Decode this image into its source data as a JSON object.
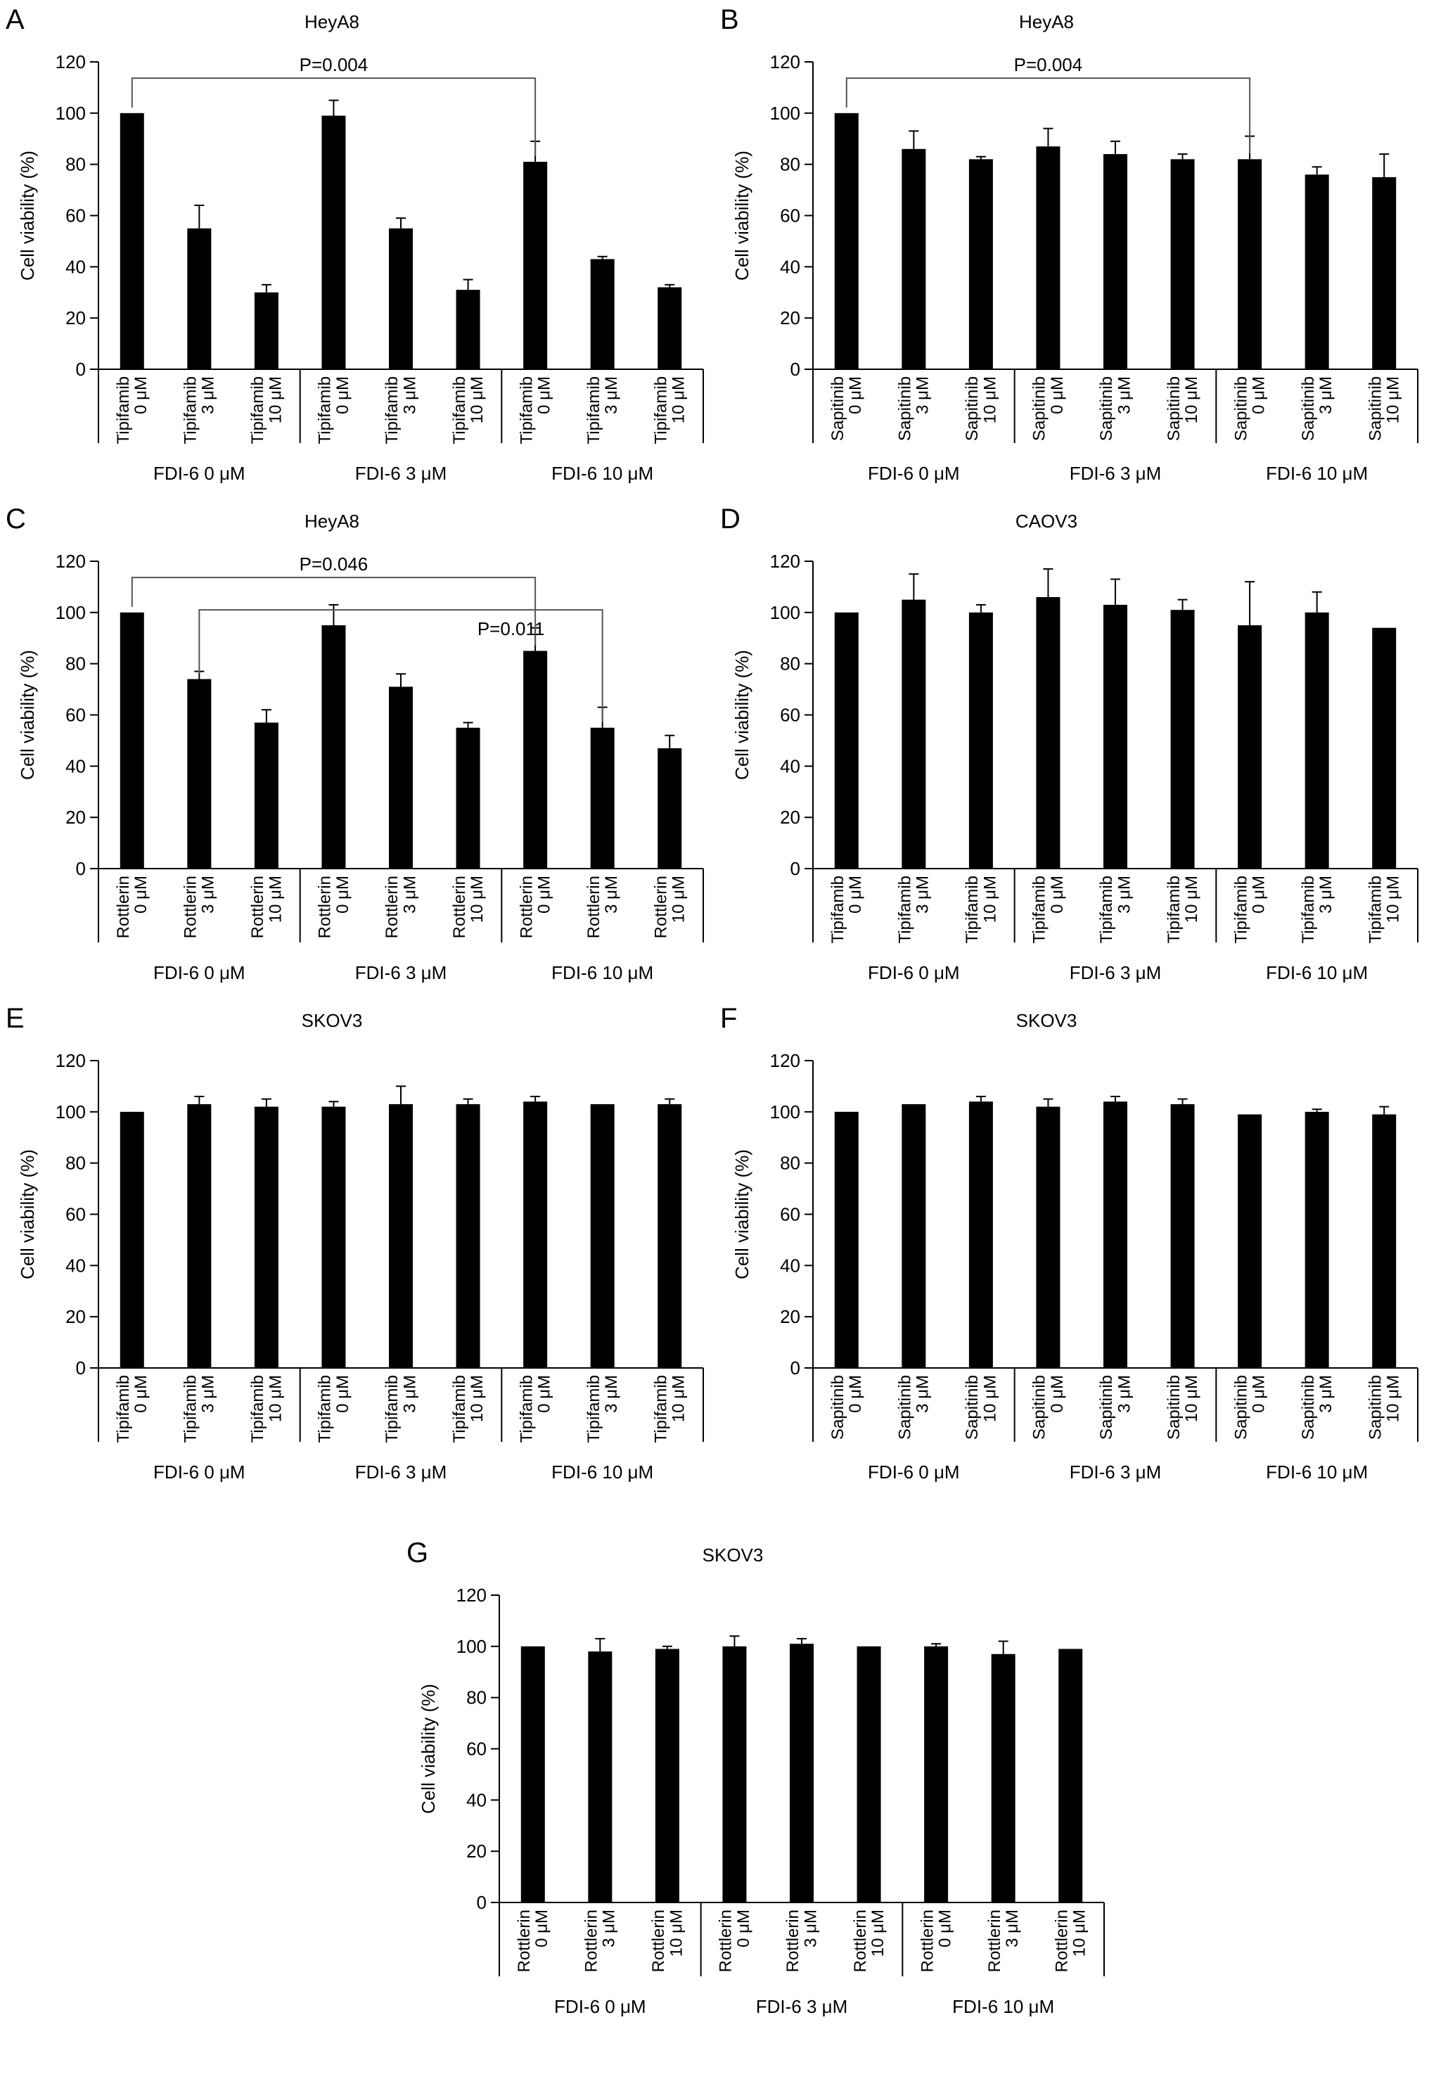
{
  "chart_data": [
    {
      "panel_label": "A",
      "type": "bar",
      "title": "HeyA8",
      "ylabel": "Cell viability (%)",
      "ylim": [
        0,
        120
      ],
      "yticks": [
        0,
        20,
        40,
        60,
        80,
        100,
        120
      ],
      "drug": "Tipifamib",
      "doses": [
        "0 μM",
        "3 μM",
        "10 μM"
      ],
      "groups": [
        "FDI-6 0 μM",
        "FDI-6 3 μM",
        "FDI-6 10 μM"
      ],
      "values": [
        100,
        55,
        30,
        99,
        55,
        31,
        81,
        43,
        32
      ],
      "errors": [
        0,
        9,
        3,
        6,
        4,
        4,
        8,
        1,
        1
      ],
      "comparisons": [
        {
          "from": 0,
          "to": 6,
          "label": "P=0.004"
        }
      ]
    },
    {
      "panel_label": "B",
      "type": "bar",
      "title": "HeyA8",
      "ylabel": "Cell viability (%)",
      "ylim": [
        0,
        120
      ],
      "yticks": [
        0,
        20,
        40,
        60,
        80,
        100,
        120
      ],
      "drug": "Sapitinib",
      "doses": [
        "0 μM",
        "3 μM",
        "10 μM"
      ],
      "groups": [
        "FDI-6 0 μM",
        "FDI-6 3 μM",
        "FDI-6 10 μM"
      ],
      "values": [
        100,
        86,
        82,
        87,
        84,
        82,
        82,
        76,
        75
      ],
      "errors": [
        0,
        7,
        1,
        7,
        5,
        2,
        9,
        3,
        9
      ],
      "comparisons": [
        {
          "from": 0,
          "to": 6,
          "label": "P=0.004"
        }
      ]
    },
    {
      "panel_label": "C",
      "type": "bar",
      "title": "HeyA8",
      "ylabel": "Cell viability (%)",
      "ylim": [
        0,
        120
      ],
      "yticks": [
        0,
        20,
        40,
        60,
        80,
        100,
        120
      ],
      "drug": "Rottlerin",
      "doses": [
        "0 μM",
        "3 μM",
        "10 μM"
      ],
      "groups": [
        "FDI-6 0 μM",
        "FDI-6 3 μM",
        "FDI-6 10 μM"
      ],
      "values": [
        100,
        74,
        57,
        95,
        71,
        55,
        85,
        55,
        47
      ],
      "errors": [
        0,
        3,
        5,
        8,
        5,
        2,
        9,
        8,
        5
      ],
      "comparisons": [
        {
          "from": 0,
          "to": 6,
          "label": "P=0.046"
        },
        {
          "from": 1,
          "to": 7,
          "label": "P=0.011"
        }
      ]
    },
    {
      "panel_label": "D",
      "type": "bar",
      "title": "CAOV3",
      "ylabel": "Cell viability (%)",
      "ylim": [
        0,
        120
      ],
      "yticks": [
        0,
        20,
        40,
        60,
        80,
        100,
        120
      ],
      "drug": "Tipifamib",
      "doses": [
        "0 μM",
        "3 μM",
        "10 μM"
      ],
      "groups": [
        "FDI-6 0 μM",
        "FDI-6 3 μM",
        "FDI-6 10 μM"
      ],
      "values": [
        100,
        105,
        100,
        106,
        103,
        101,
        95,
        100,
        94
      ],
      "errors": [
        0,
        10,
        3,
        11,
        10,
        4,
        17,
        8,
        0
      ],
      "comparisons": []
    },
    {
      "panel_label": "E",
      "type": "bar",
      "title": "SKOV3",
      "ylabel": "Cell viability (%)",
      "ylim": [
        0,
        120
      ],
      "yticks": [
        0,
        20,
        40,
        60,
        80,
        100,
        120
      ],
      "drug": "Tipifamib",
      "doses": [
        "0 μM",
        "3 μM",
        "10 μM"
      ],
      "groups": [
        "FDI-6 0 μM",
        "FDI-6 3 μM",
        "FDI-6 10 μM"
      ],
      "values": [
        100,
        103,
        102,
        102,
        103,
        103,
        104,
        103,
        103
      ],
      "errors": [
        0,
        3,
        3,
        2,
        7,
        2,
        2,
        0,
        2
      ],
      "comparisons": []
    },
    {
      "panel_label": "F",
      "type": "bar",
      "title": "SKOV3",
      "ylabel": "Cell viability (%)",
      "ylim": [
        0,
        120
      ],
      "yticks": [
        0,
        20,
        40,
        60,
        80,
        100,
        120
      ],
      "drug": "Sapitinib",
      "doses": [
        "0 μM",
        "3 μM",
        "10 μM"
      ],
      "groups": [
        "FDI-6 0 μM",
        "FDI-6 3 μM",
        "FDI-6 10 μM"
      ],
      "values": [
        100,
        103,
        104,
        102,
        104,
        103,
        99,
        100,
        99
      ],
      "errors": [
        0,
        0,
        2,
        3,
        2,
        2,
        0,
        1,
        3
      ],
      "comparisons": []
    },
    {
      "panel_label": "G",
      "type": "bar",
      "title": "SKOV3",
      "ylabel": "Cell viability (%)",
      "ylim": [
        0,
        120
      ],
      "yticks": [
        0,
        20,
        40,
        60,
        80,
        100,
        120
      ],
      "drug": "Rottlerin",
      "doses": [
        "0 μM",
        "3 μM",
        "10 μM"
      ],
      "groups": [
        "FDI-6 0 μM",
        "FDI-6 3 μM",
        "FDI-6 10 μM"
      ],
      "values": [
        100,
        98,
        99,
        100,
        101,
        100,
        100,
        97,
        99
      ],
      "errors": [
        0,
        5,
        1,
        4,
        2,
        0,
        1,
        5,
        0
      ],
      "comparisons": []
    }
  ]
}
